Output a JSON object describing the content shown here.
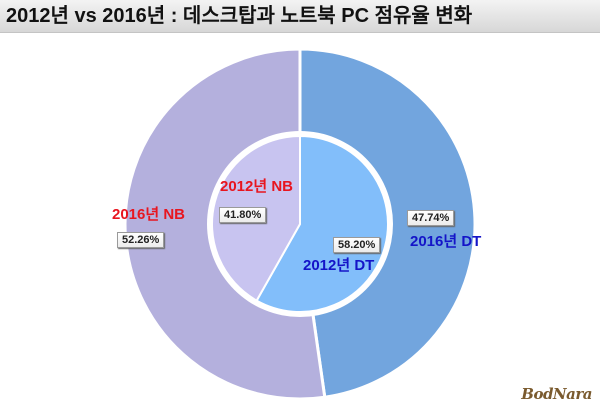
{
  "chart_data": {
    "type": "pie",
    "title": "2012년 vs 2016년 : 데스크탑과 노트북 PC 점유율 변화",
    "outer": {
      "slices": [
        {
          "label": "2016년 DT",
          "value": 47.74,
          "value_label": "47.74%",
          "color": "#72a5de",
          "label_color": "#1414c8"
        },
        {
          "label": "2016년 NB",
          "value": 52.26,
          "value_label": "52.26%",
          "color": "#b4b0dd",
          "label_color": "#e8151f"
        }
      ]
    },
    "inner": {
      "slices": [
        {
          "label": "2012년 DT",
          "value": 58.2,
          "value_label": "58.20%",
          "color": "#82befa",
          "label_color": "#1414c8"
        },
        {
          "label": "2012년 NB",
          "value": 41.8,
          "value_label": "41.80%",
          "color": "#c8c4f0",
          "label_color": "#e8151f"
        }
      ]
    }
  },
  "watermark": "BodNara"
}
